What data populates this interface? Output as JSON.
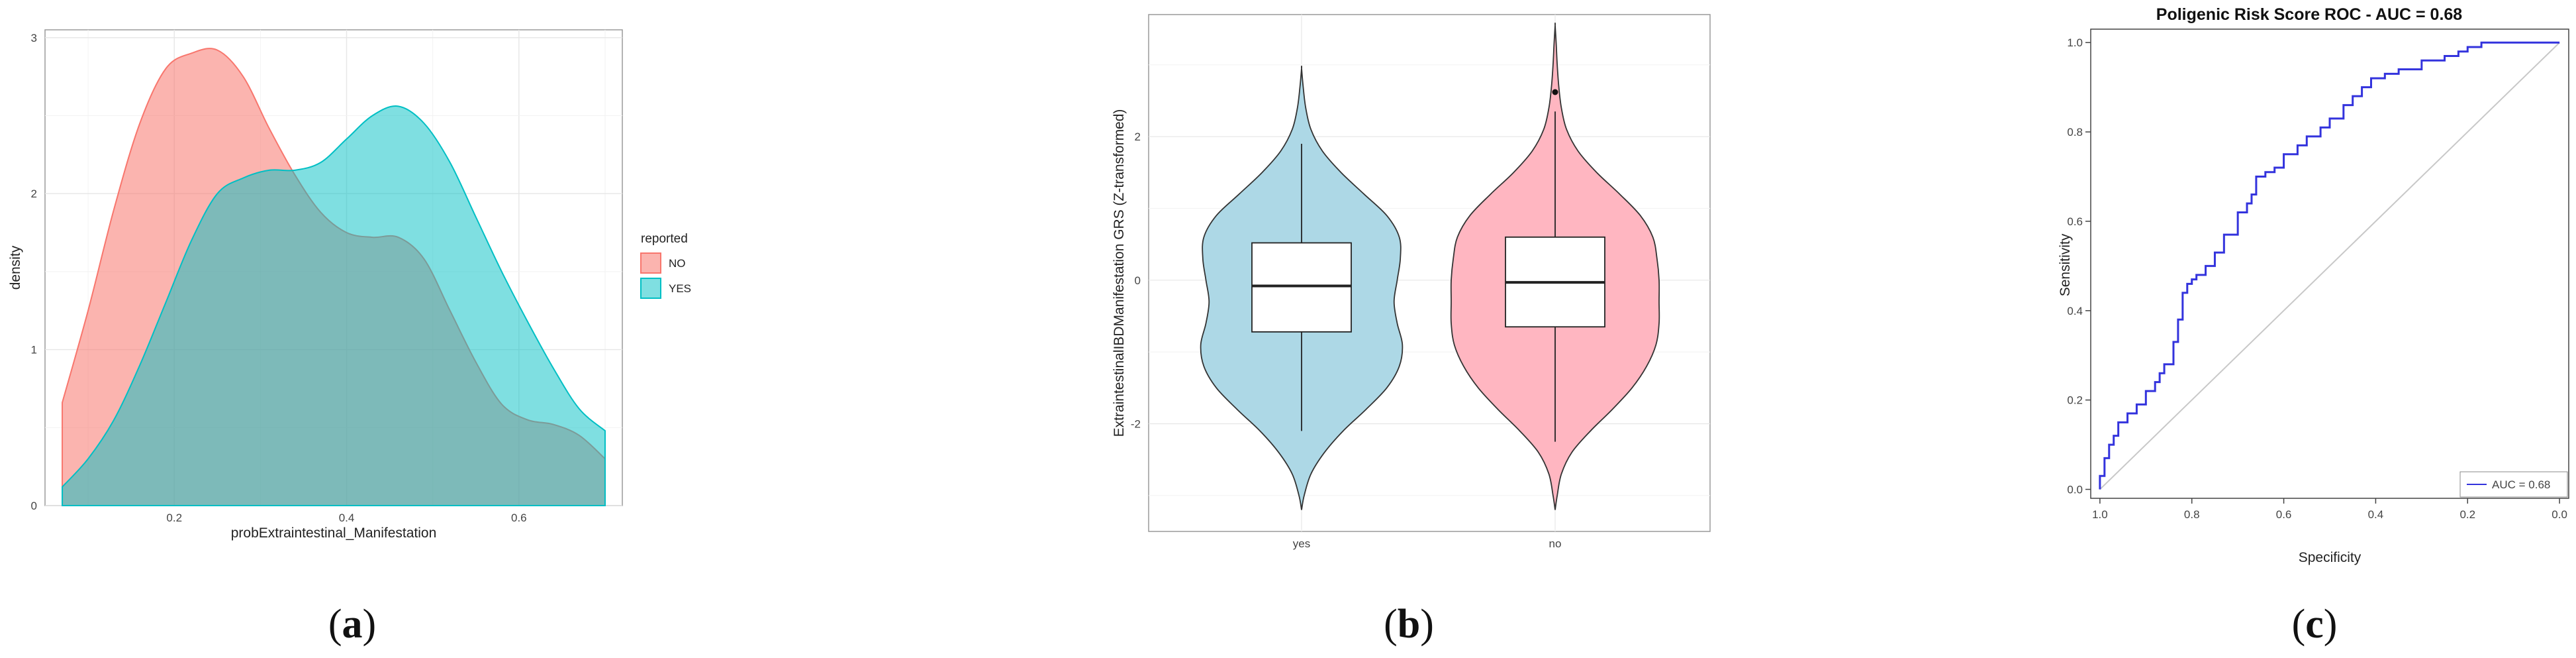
{
  "captions": {
    "a": "a",
    "b": "b",
    "c": "c"
  },
  "colors": {
    "no_density": "#f8766d",
    "yes_density": "#00bfc4",
    "violin_yes": "#add8e6",
    "violin_no": "#ffb6c1",
    "roc_line": "#3333dd",
    "diagonal": "#c8c8c8"
  },
  "chart_data": [
    {
      "type": "area",
      "xlabel": "probExtraintestinal_Manifestation",
      "ylabel": "density",
      "xlim": [
        0.05,
        0.72
      ],
      "ylim": [
        0,
        3.05
      ],
      "x_ticks": [
        "0.2",
        "0.4",
        "0.6"
      ],
      "y_ticks": [
        "0",
        "1",
        "2",
        "3"
      ],
      "grid": true,
      "legend": {
        "title": "reported",
        "position": "right",
        "entries": [
          "NO",
          "YES"
        ]
      },
      "series": [
        {
          "name": "NO",
          "x": [
            0.07,
            0.1,
            0.13,
            0.16,
            0.19,
            0.22,
            0.25,
            0.28,
            0.31,
            0.34,
            0.37,
            0.4,
            0.43,
            0.46,
            0.49,
            0.52,
            0.55,
            0.58,
            0.61,
            0.64,
            0.67,
            0.7
          ],
          "y": [
            0.66,
            1.25,
            1.9,
            2.45,
            2.8,
            2.9,
            2.92,
            2.75,
            2.42,
            2.12,
            1.88,
            1.75,
            1.72,
            1.72,
            1.58,
            1.25,
            0.92,
            0.65,
            0.55,
            0.52,
            0.45,
            0.3
          ]
        },
        {
          "name": "YES",
          "x": [
            0.07,
            0.1,
            0.13,
            0.16,
            0.19,
            0.22,
            0.25,
            0.28,
            0.31,
            0.34,
            0.37,
            0.4,
            0.43,
            0.46,
            0.49,
            0.52,
            0.55,
            0.58,
            0.61,
            0.64,
            0.67,
            0.7
          ],
          "y": [
            0.12,
            0.3,
            0.55,
            0.9,
            1.3,
            1.7,
            2.0,
            2.1,
            2.15,
            2.15,
            2.2,
            2.35,
            2.5,
            2.56,
            2.45,
            2.2,
            1.85,
            1.5,
            1.18,
            0.88,
            0.62,
            0.48
          ]
        }
      ]
    },
    {
      "type": "violin",
      "xlabel": "",
      "ylabel": "ExtraintestinalIBDManifestation GRS (Z-transformed)",
      "ylim": [
        -3.5,
        3.7
      ],
      "categories": [
        "yes",
        "no"
      ],
      "y_ticks": [
        "-2",
        "0",
        "2"
      ],
      "grid": true,
      "groups": [
        {
          "category": "yes",
          "box": {
            "q1": -0.72,
            "median": -0.08,
            "q3": 0.52,
            "whisker_low": -2.1,
            "whisker_high": 1.9
          },
          "outliers": [],
          "violin_y": [
            -3.2,
            -3.0,
            -2.7,
            -2.4,
            -2.1,
            -1.8,
            -1.5,
            -1.2,
            -0.9,
            -0.6,
            -0.3,
            0.0,
            0.3,
            0.6,
            0.9,
            1.2,
            1.5,
            1.8,
            2.1,
            2.4,
            2.7,
            2.95
          ],
          "violin_halfwidth": [
            0.0,
            0.025,
            0.09,
            0.22,
            0.4,
            0.62,
            0.82,
            0.94,
            0.97,
            0.92,
            0.89,
            0.92,
            0.95,
            0.94,
            0.82,
            0.6,
            0.38,
            0.2,
            0.09,
            0.04,
            0.015,
            0.0
          ]
        },
        {
          "category": "no",
          "box": {
            "q1": -0.65,
            "median": -0.03,
            "q3": 0.6,
            "whisker_low": -2.25,
            "whisker_high": 2.35
          },
          "outliers": [
            2.62
          ],
          "violin_y": [
            -3.2,
            -3.0,
            -2.7,
            -2.4,
            -2.1,
            -1.8,
            -1.5,
            -1.2,
            -0.9,
            -0.6,
            -0.3,
            0.0,
            0.3,
            0.6,
            0.9,
            1.2,
            1.5,
            1.8,
            2.1,
            2.4,
            2.7,
            3.0,
            3.3,
            3.55
          ],
          "violin_halfwidth": [
            0.0,
            0.02,
            0.06,
            0.16,
            0.34,
            0.55,
            0.74,
            0.88,
            0.97,
            1.0,
            1.0,
            1.0,
            0.98,
            0.94,
            0.82,
            0.62,
            0.4,
            0.22,
            0.11,
            0.06,
            0.035,
            0.02,
            0.01,
            0.0
          ]
        }
      ]
    },
    {
      "type": "line",
      "title": "Poligenic Risk Score ROC - AUC = 0.68",
      "xlabel": "Specificity",
      "ylabel": "Sensitivity",
      "xlim": [
        1.02,
        -0.02
      ],
      "ylim": [
        -0.02,
        1.03
      ],
      "x_ticks": [
        "1.0",
        "0.8",
        "0.6",
        "0.4",
        "0.2",
        "0.0"
      ],
      "y_ticks": [
        "0.0",
        "0.2",
        "0.4",
        "0.6",
        "0.8",
        "1.0"
      ],
      "legend": {
        "position": "bottom-right",
        "entries": [
          "AUC = 0.68"
        ]
      },
      "series": [
        {
          "name": "AUC = 0.68",
          "x": [
            1.0,
            1.0,
            0.99,
            0.99,
            0.98,
            0.98,
            0.97,
            0.97,
            0.96,
            0.96,
            0.94,
            0.94,
            0.92,
            0.92,
            0.9,
            0.9,
            0.88,
            0.88,
            0.87,
            0.87,
            0.86,
            0.86,
            0.84,
            0.84,
            0.83,
            0.83,
            0.82,
            0.82,
            0.81,
            0.81,
            0.8,
            0.8,
            0.79,
            0.79,
            0.77,
            0.77,
            0.75,
            0.75,
            0.73,
            0.73,
            0.7,
            0.7,
            0.68,
            0.68,
            0.67,
            0.67,
            0.66,
            0.66,
            0.64,
            0.64,
            0.62,
            0.62,
            0.6,
            0.6,
            0.57,
            0.57,
            0.55,
            0.55,
            0.52,
            0.52,
            0.5,
            0.5,
            0.47,
            0.47,
            0.45,
            0.45,
            0.43,
            0.43,
            0.41,
            0.41,
            0.38,
            0.38,
            0.35,
            0.35,
            0.3,
            0.3,
            0.25,
            0.25,
            0.22,
            0.22,
            0.2,
            0.2,
            0.17,
            0.17,
            0.14,
            0.14,
            0.1,
            0.1,
            0.0
          ],
          "y": [
            0.0,
            0.03,
            0.03,
            0.07,
            0.07,
            0.1,
            0.1,
            0.12,
            0.12,
            0.15,
            0.15,
            0.17,
            0.17,
            0.19,
            0.19,
            0.22,
            0.22,
            0.24,
            0.24,
            0.26,
            0.26,
            0.28,
            0.28,
            0.33,
            0.33,
            0.38,
            0.38,
            0.44,
            0.44,
            0.46,
            0.46,
            0.47,
            0.47,
            0.48,
            0.48,
            0.5,
            0.5,
            0.53,
            0.53,
            0.57,
            0.57,
            0.62,
            0.62,
            0.64,
            0.64,
            0.66,
            0.66,
            0.7,
            0.7,
            0.71,
            0.71,
            0.72,
            0.72,
            0.75,
            0.75,
            0.77,
            0.77,
            0.79,
            0.79,
            0.81,
            0.81,
            0.83,
            0.83,
            0.86,
            0.86,
            0.88,
            0.88,
            0.9,
            0.9,
            0.92,
            0.92,
            0.93,
            0.93,
            0.94,
            0.94,
            0.96,
            0.96,
            0.97,
            0.97,
            0.98,
            0.98,
            0.99,
            0.99,
            1.0,
            1.0,
            1.0,
            1.0,
            1.0,
            1.0
          ]
        }
      ]
    }
  ]
}
